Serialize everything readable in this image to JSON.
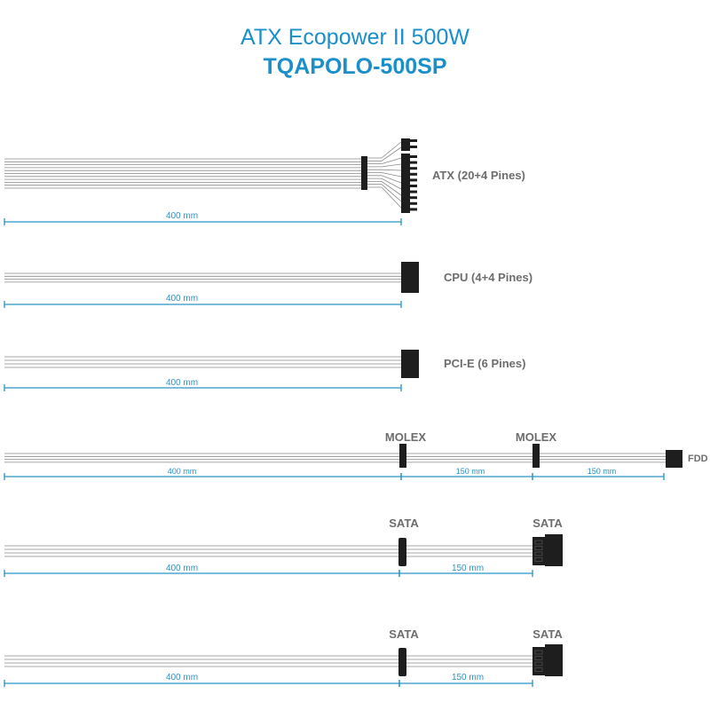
{
  "title": {
    "line1": "ATX Ecopower II 500W",
    "line2": "TQAPOLO-500SP"
  },
  "accent_color": "#1a8fc9",
  "cables": [
    {
      "name": "atx",
      "connectors": [
        "ATX (20+4 Pines)"
      ],
      "lengths": [
        "400 mm"
      ]
    },
    {
      "name": "cpu",
      "connectors": [
        "CPU (4+4 Pines)"
      ],
      "lengths": [
        "400 mm"
      ]
    },
    {
      "name": "pcie",
      "connectors": [
        "PCI-E (6 Pines)"
      ],
      "lengths": [
        "400 mm"
      ]
    },
    {
      "name": "molex-fdd",
      "connectors": [
        "MOLEX",
        "MOLEX",
        "FDD"
      ],
      "lengths": [
        "400 mm",
        "150 mm",
        "150 mm"
      ]
    },
    {
      "name": "sata-1",
      "connectors": [
        "SATA",
        "SATA"
      ],
      "lengths": [
        "400 mm",
        "150 mm"
      ]
    },
    {
      "name": "sata-2",
      "connectors": [
        "SATA",
        "SATA"
      ],
      "lengths": [
        "400 mm",
        "150 mm"
      ]
    }
  ]
}
